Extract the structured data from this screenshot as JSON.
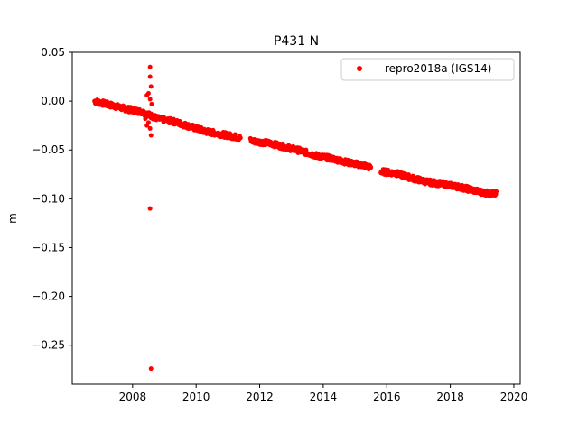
{
  "chart_data": {
    "type": "scatter",
    "title": "P431 N",
    "xlabel": "",
    "ylabel": "m",
    "xlim": [
      2006.1,
      2020.2
    ],
    "ylim": [
      -0.29,
      0.05
    ],
    "xticks": [
      2008,
      2010,
      2012,
      2014,
      2016,
      2018,
      2020
    ],
    "xtick_labels": [
      "2008",
      "2010",
      "2012",
      "2014",
      "2016",
      "2018",
      "2020"
    ],
    "yticks": [
      0.05,
      0.0,
      -0.05,
      -0.1,
      -0.15,
      -0.2,
      -0.25
    ],
    "ytick_labels": [
      "0.05",
      "0.00",
      "−0.05",
      "−0.10",
      "−0.15",
      "−0.20",
      "−0.25"
    ],
    "grid": false,
    "legend_position": "top-right",
    "series": [
      {
        "name": "repro2018a (IGS14)",
        "color": "#ff0000",
        "marker": "circle",
        "trend": {
          "x": [
            2006.8,
            2007.3,
            2007.8,
            2008.3,
            2008.8,
            2009.3,
            2009.8,
            2010.3,
            2010.8,
            2011.3,
            2011.8,
            2012.3,
            2012.8,
            2013.3,
            2013.8,
            2014.3,
            2014.8,
            2015.3,
            2015.8,
            2016.3,
            2016.8,
            2017.3,
            2017.8,
            2018.3,
            2018.8,
            2019.3
          ],
          "y": [
            0.0,
            -0.004,
            -0.008,
            -0.011,
            -0.018,
            -0.021,
            -0.026,
            -0.031,
            -0.034,
            -0.037,
            -0.041,
            -0.043,
            -0.047,
            -0.051,
            -0.056,
            -0.059,
            -0.063,
            -0.066,
            -0.072,
            -0.074,
            -0.079,
            -0.083,
            -0.085,
            -0.088,
            -0.092,
            -0.095
          ]
        },
        "gaps": [
          [
            2009.0,
            2009.05
          ],
          [
            2011.4,
            2011.7
          ],
          [
            2015.5,
            2015.8
          ],
          [
            2019.45,
            2020.2
          ]
        ],
        "jitter_points": [
          [
            2008.55,
            0.035
          ],
          [
            2008.55,
            0.025
          ],
          [
            2008.58,
            0.015
          ],
          [
            2008.5,
            0.008
          ],
          [
            2008.45,
            0.006
          ],
          [
            2008.55,
            0.002
          ],
          [
            2008.6,
            -0.003
          ],
          [
            2008.45,
            -0.025
          ],
          [
            2008.55,
            -0.028
          ],
          [
            2008.58,
            -0.035
          ],
          [
            2008.55,
            -0.11
          ],
          [
            2008.58,
            -0.274
          ],
          [
            2008.4,
            -0.018
          ],
          [
            2008.5,
            -0.022
          ]
        ]
      }
    ]
  }
}
